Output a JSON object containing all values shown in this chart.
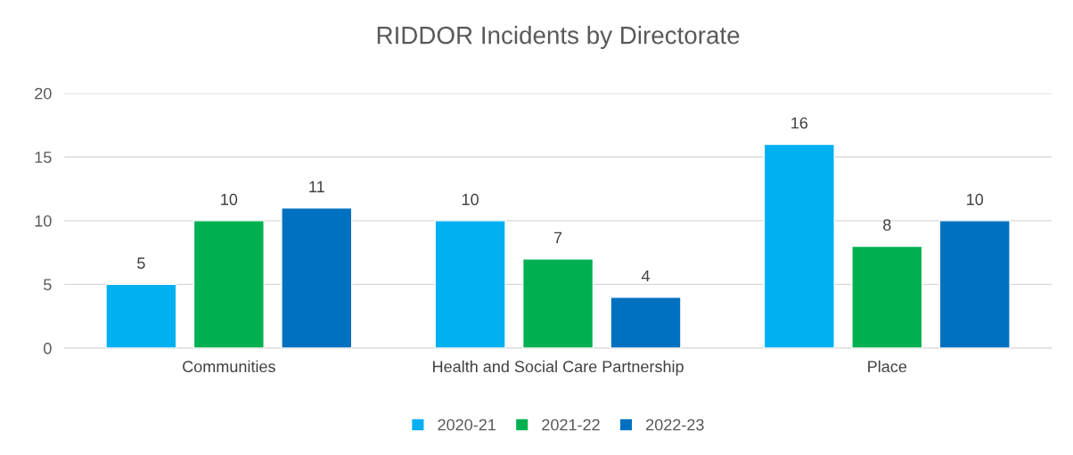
{
  "chart_data": {
    "type": "bar",
    "title": "RIDDOR Incidents by Directorate",
    "categories": [
      "Communities",
      "Health and Social Care Partnership",
      "Place"
    ],
    "series": [
      {
        "name": "2020-21",
        "color": "#00b0f0",
        "values": [
          5,
          10,
          16
        ]
      },
      {
        "name": "2021-22",
        "color": "#00b050",
        "values": [
          10,
          7,
          8
        ]
      },
      {
        "name": "2022-23",
        "color": "#0070c0",
        "values": [
          11,
          4,
          10
        ]
      }
    ],
    "ylim": [
      0,
      20
    ],
    "yticks": [
      0,
      5,
      10,
      15,
      20
    ],
    "grid": "y",
    "legend": "bottom",
    "data_labels": true
  }
}
